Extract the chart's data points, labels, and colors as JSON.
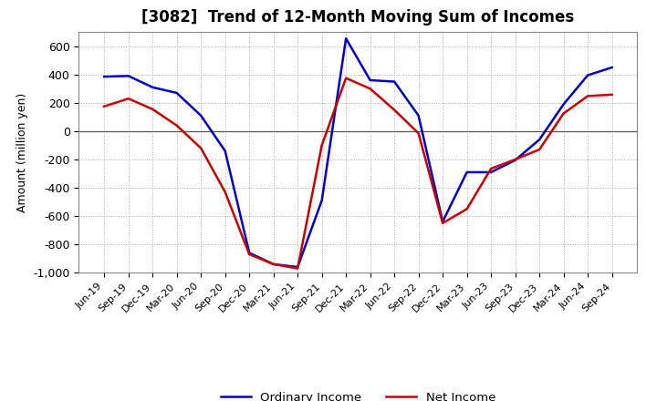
{
  "title": "[3082]  Trend of 12-Month Moving Sum of Incomes",
  "ylabel": "Amount (million yen)",
  "ylim": [
    -1000,
    700
  ],
  "yticks": [
    -1000,
    -800,
    -600,
    -400,
    -200,
    0,
    200,
    400,
    600
  ],
  "background_color": "#ffffff",
  "grid_color": "#aaaaaa",
  "x_labels": [
    "Jun-19",
    "Sep-19",
    "Dec-19",
    "Mar-20",
    "Jun-20",
    "Sep-20",
    "Dec-20",
    "Mar-21",
    "Jun-21",
    "Sep-21",
    "Dec-21",
    "Mar-22",
    "Jun-22",
    "Sep-22",
    "Dec-22",
    "Mar-23",
    "Jun-23",
    "Sep-23",
    "Dec-23",
    "Mar-24",
    "Jun-24",
    "Sep-24"
  ],
  "ordinary_income": [
    385,
    390,
    310,
    270,
    110,
    -140,
    -860,
    -940,
    -960,
    -490,
    655,
    360,
    350,
    110,
    -640,
    -290,
    -290,
    -205,
    -60,
    190,
    395,
    450
  ],
  "net_income": [
    175,
    230,
    155,
    40,
    -120,
    -430,
    -870,
    -940,
    -970,
    -100,
    375,
    300,
    150,
    -15,
    -650,
    -550,
    -265,
    -200,
    -130,
    125,
    248,
    258
  ],
  "ordinary_color": "#0000cc",
  "net_color": "#cc0000",
  "line_width": 1.8
}
